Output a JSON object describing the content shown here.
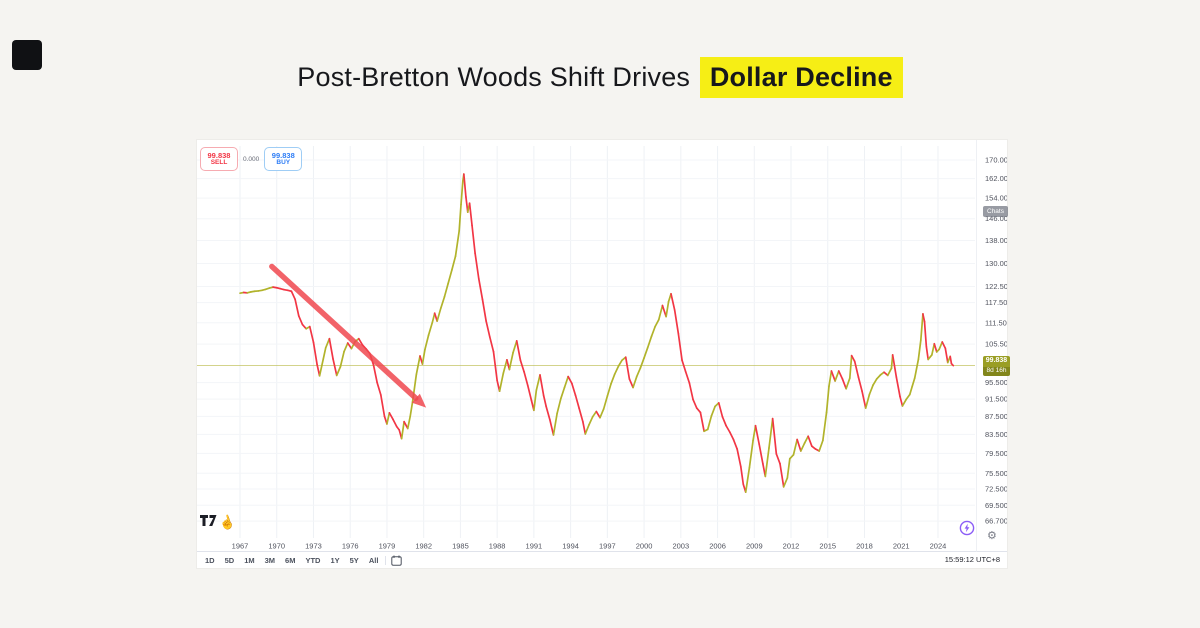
{
  "page": {
    "background": "#f5f4f1"
  },
  "title": {
    "regular": "Post-Bretton Woods Shift Drives",
    "highlight": "Dollar Decline",
    "highlight_bg": "#f6ee15",
    "text_color": "#17181c"
  },
  "trade_widget": {
    "sell_price": "99.838",
    "sell_label": "SELL",
    "spread": "0.000",
    "buy_price": "99.838",
    "buy_label": "BUY",
    "sell_color": "#f23645",
    "buy_color": "#2e7df6"
  },
  "price_scale": {
    "overlay_badge": "Chats",
    "current": {
      "price": "99.838",
      "countdown": "8d 16h"
    },
    "badge_colors": {
      "top": "#9a9e24",
      "bottom": "#82861b"
    }
  },
  "time_scale": {
    "clock": "15:59:12 UTC+8"
  },
  "toolbar": {
    "ranges": [
      "1D",
      "5D",
      "1M",
      "3M",
      "6M",
      "YTD",
      "1Y",
      "5Y",
      "All"
    ]
  },
  "icons": {
    "tv_logo": "tradingview-logo",
    "hand": "pan-hand-icon",
    "hand_glyph": "☝",
    "calendar": "calendar-icon",
    "gear": "scale-settings-gear-icon",
    "gear_glyph": "⚙",
    "bolt": "instant-order-bolt-icon"
  },
  "chart_data": {
    "type": "candlestick",
    "title": "Post-Bretton Woods Shift Drives Dollar Decline",
    "y_scale": "log",
    "ylim": [
      64,
      175
    ],
    "grid": true,
    "x_ticks": [
      1967,
      1970,
      1973,
      1976,
      1979,
      1982,
      1985,
      1988,
      1991,
      1994,
      1997,
      2000,
      2003,
      2006,
      2009,
      2012,
      2015,
      2018,
      2021,
      2024
    ],
    "y_ticks": [
      170,
      162,
      154,
      146,
      138,
      130,
      122.5,
      117.5,
      111.5,
      105.5,
      95.5,
      91.5,
      87.5,
      83.5,
      79.5,
      75.5,
      72.5,
      69.5,
      66.7
    ],
    "current_price": 99.838,
    "countdown": "8d 16h",
    "up_color": "#b1b32b",
    "down_color": "#f23645",
    "current_line_color": "#bcbd4e",
    "annotation": {
      "type": "arrow",
      "from_year": 1969.6,
      "from_price": 129,
      "to_year": 1982.2,
      "to_price": 89.5,
      "color": "#f0484f"
    },
    "series": [
      [
        1967.0,
        120.4
      ],
      [
        1967.3,
        120.6
      ],
      [
        1967.6,
        120.5
      ],
      [
        1967.9,
        120.8
      ],
      [
        1968.2,
        121.0
      ],
      [
        1968.5,
        121.1
      ],
      [
        1968.8,
        121.3
      ],
      [
        1969.1,
        121.6
      ],
      [
        1969.4,
        122.0
      ],
      [
        1969.7,
        122.3
      ],
      [
        1970.0,
        122.1
      ],
      [
        1970.3,
        121.8
      ],
      [
        1970.6,
        121.5
      ],
      [
        1970.9,
        121.3
      ],
      [
        1971.2,
        121.0
      ],
      [
        1971.5,
        118.5
      ],
      [
        1971.8,
        113.5
      ],
      [
        1972.1,
        111.0
      ],
      [
        1972.4,
        109.8
      ],
      [
        1972.7,
        110.4
      ],
      [
        1973.0,
        106.0
      ],
      [
        1973.3,
        100.0
      ],
      [
        1973.5,
        97.2
      ],
      [
        1973.8,
        101.5
      ],
      [
        1974.0,
        104.5
      ],
      [
        1974.3,
        107.0
      ],
      [
        1974.6,
        101.5
      ],
      [
        1974.9,
        97.3
      ],
      [
        1975.2,
        99.5
      ],
      [
        1975.5,
        103.5
      ],
      [
        1975.8,
        105.8
      ],
      [
        1976.1,
        104.3
      ],
      [
        1976.4,
        106.2
      ],
      [
        1976.7,
        107.0
      ],
      [
        1977.0,
        105.3
      ],
      [
        1977.3,
        104.2
      ],
      [
        1977.6,
        103.0
      ],
      [
        1977.9,
        100.0
      ],
      [
        1978.2,
        95.5
      ],
      [
        1978.5,
        92.5
      ],
      [
        1978.8,
        87.5
      ],
      [
        1979.0,
        85.8
      ],
      [
        1979.2,
        88.3
      ],
      [
        1979.5,
        86.8
      ],
      [
        1979.8,
        85.2
      ],
      [
        1980.0,
        84.5
      ],
      [
        1980.2,
        82.6
      ],
      [
        1980.4,
        86.3
      ],
      [
        1980.7,
        84.8
      ],
      [
        1980.9,
        87.5
      ],
      [
        1981.1,
        91.0
      ],
      [
        1981.4,
        97.5
      ],
      [
        1981.7,
        102.3
      ],
      [
        1981.9,
        100.2
      ],
      [
        1982.1,
        104.0
      ],
      [
        1982.4,
        108.0
      ],
      [
        1982.7,
        111.5
      ],
      [
        1982.9,
        114.3
      ],
      [
        1983.1,
        112.0
      ],
      [
        1983.4,
        115.8
      ],
      [
        1983.7,
        119.3
      ],
      [
        1984.0,
        123.5
      ],
      [
        1984.3,
        127.8
      ],
      [
        1984.6,
        132.5
      ],
      [
        1984.9,
        141.5
      ],
      [
        1985.05,
        151.5
      ],
      [
        1985.2,
        161.0
      ],
      [
        1985.28,
        163.9
      ],
      [
        1985.45,
        154.5
      ],
      [
        1985.6,
        148.5
      ],
      [
        1985.75,
        152.0
      ],
      [
        1985.95,
        143.5
      ],
      [
        1986.2,
        133.5
      ],
      [
        1986.5,
        125.0
      ],
      [
        1986.8,
        118.5
      ],
      [
        1987.1,
        112.0
      ],
      [
        1987.4,
        107.5
      ],
      [
        1987.7,
        103.5
      ],
      [
        1988.0,
        96.0
      ],
      [
        1988.2,
        93.4
      ],
      [
        1988.5,
        97.8
      ],
      [
        1988.8,
        101.3
      ],
      [
        1989.0,
        98.8
      ],
      [
        1989.3,
        103.2
      ],
      [
        1989.6,
        106.4
      ],
      [
        1989.9,
        101.2
      ],
      [
        1990.2,
        98.2
      ],
      [
        1990.5,
        94.8
      ],
      [
        1990.8,
        91.2
      ],
      [
        1991.0,
        88.9
      ],
      [
        1991.2,
        93.6
      ],
      [
        1991.5,
        97.4
      ],
      [
        1991.8,
        92.3
      ],
      [
        1992.0,
        89.8
      ],
      [
        1992.3,
        86.8
      ],
      [
        1992.6,
        83.4
      ],
      [
        1992.9,
        88.2
      ],
      [
        1993.2,
        91.6
      ],
      [
        1993.5,
        94.3
      ],
      [
        1993.8,
        97.0
      ],
      [
        1994.1,
        95.3
      ],
      [
        1994.4,
        92.4
      ],
      [
        1994.7,
        89.3
      ],
      [
        1995.0,
        86.3
      ],
      [
        1995.2,
        83.6
      ],
      [
        1995.5,
        85.6
      ],
      [
        1995.8,
        87.4
      ],
      [
        1996.1,
        88.6
      ],
      [
        1996.4,
        87.2
      ],
      [
        1996.7,
        89.2
      ],
      [
        1997.0,
        92.2
      ],
      [
        1997.3,
        95.2
      ],
      [
        1997.6,
        97.6
      ],
      [
        1997.9,
        99.6
      ],
      [
        1998.2,
        101.2
      ],
      [
        1998.5,
        102.0
      ],
      [
        1998.8,
        96.4
      ],
      [
        1999.1,
        94.3
      ],
      [
        1999.4,
        97.0
      ],
      [
        1999.7,
        99.2
      ],
      [
        2000.0,
        101.8
      ],
      [
        2000.3,
        104.6
      ],
      [
        2000.6,
        107.6
      ],
      [
        2000.9,
        110.4
      ],
      [
        2001.2,
        112.4
      ],
      [
        2001.5,
        116.6
      ],
      [
        2001.8,
        113.3
      ],
      [
        2002.0,
        117.8
      ],
      [
        2002.2,
        120.2
      ],
      [
        2002.5,
        115.2
      ],
      [
        2002.8,
        108.4
      ],
      [
        2003.1,
        101.2
      ],
      [
        2003.4,
        98.2
      ],
      [
        2003.7,
        95.4
      ],
      [
        2004.0,
        91.4
      ],
      [
        2004.3,
        89.4
      ],
      [
        2004.6,
        88.4
      ],
      [
        2004.9,
        84.2
      ],
      [
        2005.2,
        84.6
      ],
      [
        2005.5,
        87.6
      ],
      [
        2005.8,
        89.8
      ],
      [
        2006.1,
        90.6
      ],
      [
        2006.4,
        87.4
      ],
      [
        2006.7,
        85.4
      ],
      [
        2007.0,
        84.0
      ],
      [
        2007.3,
        82.4
      ],
      [
        2007.6,
        80.4
      ],
      [
        2007.9,
        76.8
      ],
      [
        2008.1,
        73.4
      ],
      [
        2008.3,
        71.9
      ],
      [
        2008.6,
        76.6
      ],
      [
        2008.9,
        82.2
      ],
      [
        2009.1,
        85.4
      ],
      [
        2009.4,
        81.4
      ],
      [
        2009.7,
        77.4
      ],
      [
        2009.9,
        74.9
      ],
      [
        2010.2,
        80.6
      ],
      [
        2010.5,
        87.0
      ],
      [
        2010.8,
        79.4
      ],
      [
        2011.1,
        77.4
      ],
      [
        2011.4,
        72.9
      ],
      [
        2011.7,
        74.6
      ],
      [
        2011.9,
        78.4
      ],
      [
        2012.2,
        79.2
      ],
      [
        2012.5,
        82.4
      ],
      [
        2012.8,
        80.0
      ],
      [
        2013.1,
        81.6
      ],
      [
        2013.4,
        83.1
      ],
      [
        2013.7,
        81.0
      ],
      [
        2014.0,
        80.4
      ],
      [
        2014.3,
        80.0
      ],
      [
        2014.6,
        82.2
      ],
      [
        2014.9,
        88.4
      ],
      [
        2015.1,
        94.6
      ],
      [
        2015.3,
        98.4
      ],
      [
        2015.6,
        95.9
      ],
      [
        2015.9,
        98.4
      ],
      [
        2016.2,
        96.4
      ],
      [
        2016.5,
        94.0
      ],
      [
        2016.8,
        96.6
      ],
      [
        2016.95,
        102.4
      ],
      [
        2017.2,
        100.9
      ],
      [
        2017.5,
        96.9
      ],
      [
        2017.8,
        93.4
      ],
      [
        2018.1,
        89.4
      ],
      [
        2018.4,
        92.6
      ],
      [
        2018.7,
        94.9
      ],
      [
        2019.0,
        96.4
      ],
      [
        2019.3,
        97.4
      ],
      [
        2019.6,
        98.1
      ],
      [
        2019.9,
        97.3
      ],
      [
        2020.2,
        99.1
      ],
      [
        2020.3,
        102.6
      ],
      [
        2020.6,
        96.9
      ],
      [
        2020.9,
        92.1
      ],
      [
        2021.1,
        89.9
      ],
      [
        2021.4,
        91.4
      ],
      [
        2021.7,
        92.6
      ],
      [
        2021.9,
        94.6
      ],
      [
        2022.1,
        96.6
      ],
      [
        2022.4,
        101.4
      ],
      [
        2022.6,
        106.6
      ],
      [
        2022.77,
        114.1
      ],
      [
        2022.9,
        111.9
      ],
      [
        2023.05,
        104.9
      ],
      [
        2023.2,
        101.4
      ],
      [
        2023.5,
        102.6
      ],
      [
        2023.7,
        105.6
      ],
      [
        2023.9,
        103.4
      ],
      [
        2024.1,
        104.1
      ],
      [
        2024.35,
        106.1
      ],
      [
        2024.6,
        104.4
      ],
      [
        2024.8,
        100.6
      ],
      [
        2025.0,
        102.2
      ],
      [
        2025.1,
        100.3
      ],
      [
        2025.25,
        99.8
      ]
    ]
  }
}
